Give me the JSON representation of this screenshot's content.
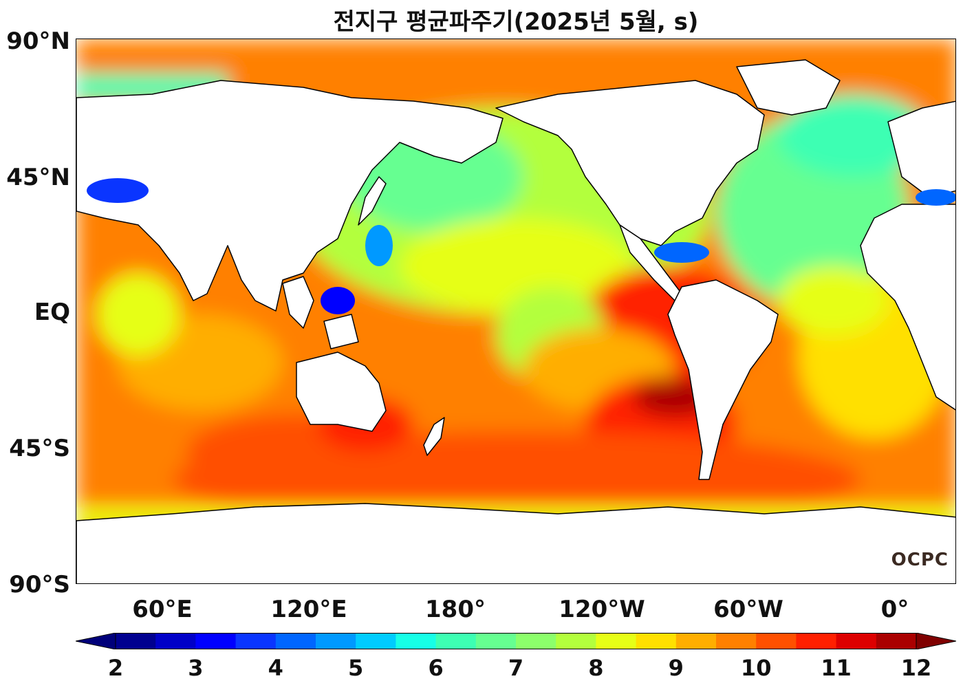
{
  "title": "전지구 평균파주기(2025년 5월, s)",
  "lat_labels": [
    "90°N",
    "45°N",
    "EQ",
    "45°S",
    "90°S"
  ],
  "lon_labels": [
    "60°E",
    "120°E",
    "180°",
    "120°W",
    "60°W",
    "0°"
  ],
  "watermark": "OCPC",
  "colorbar": {
    "ticks": [
      "2",
      "3",
      "4",
      "5",
      "6",
      "7",
      "8",
      "9",
      "10",
      "11",
      "12"
    ],
    "colors": [
      "#00008f",
      "#0000c8",
      "#0000ff",
      "#0a35ff",
      "#0066ff",
      "#0099ff",
      "#00ccff",
      "#17ffe6",
      "#3dffb3",
      "#66ff91",
      "#8cff6b",
      "#b3ff3d",
      "#e6ff17",
      "#ffe000",
      "#ffae00",
      "#ff8000",
      "#ff5000",
      "#ff2000",
      "#dd0000",
      "#aa0000"
    ],
    "under_color": "#00007a",
    "over_color": "#800000"
  },
  "map_colors": {
    "land": "#ffffff",
    "coast": "#000000"
  }
}
